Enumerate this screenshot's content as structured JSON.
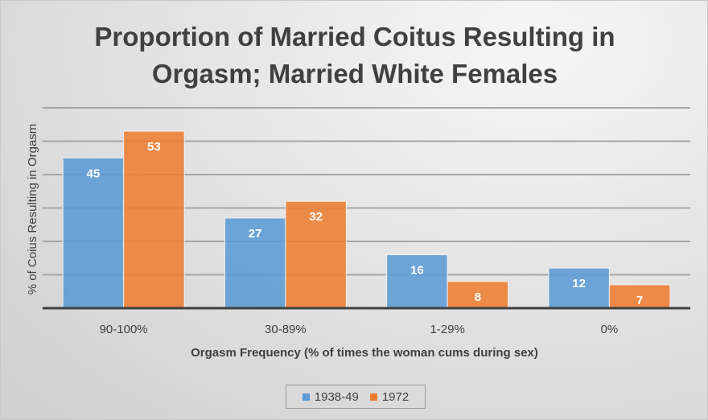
{
  "chart_data": {
    "type": "bar",
    "title_line1": "Proportion of Married Coitus Resulting in",
    "title_line2": "Orgasm; Married White Females",
    "xlabel": "Orgasm Frequency (% of times the woman cums during sex)",
    "ylabel": "% of Coius Resulting in Orgasm",
    "categories": [
      "90-100%",
      "30-89%",
      "1-29%",
      "0%"
    ],
    "series": [
      {
        "name": "1938-49",
        "values": [
          45,
          27,
          16,
          12
        ],
        "color": "#5b9bd5"
      },
      {
        "name": "1972",
        "values": [
          53,
          32,
          8,
          7
        ],
        "color": "#ed7d31"
      }
    ],
    "ylim": [
      0,
      60
    ],
    "grid_step": 10,
    "grid": true,
    "legend_position": "bottom"
  }
}
